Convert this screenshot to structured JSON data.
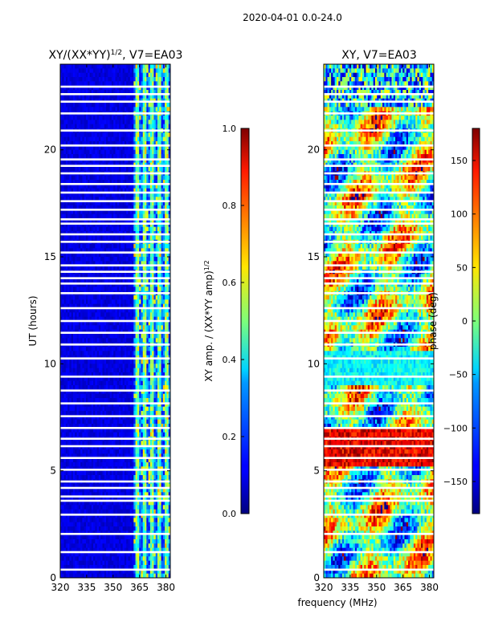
{
  "figure": {
    "suptitle": "2020-04-01 0.0-24.0",
    "xlabel": "frequency (MHz)"
  },
  "chart_data": [
    {
      "type": "heatmap",
      "title_main": "XY/(XX*YY)",
      "title_exp": "1/2",
      "title_suffix": ", V7=EA03",
      "xlabel": "",
      "ylabel": "UT (hours)",
      "xlim": [
        320,
        382.5
      ],
      "ylim": [
        0,
        24
      ],
      "xticks": [
        320,
        335,
        350,
        365,
        380
      ],
      "yticks": [
        0,
        5,
        10,
        15,
        20
      ],
      "colorbar": {
        "label_main": "XY amp. / (XX*YY amp)",
        "label_exp": "1/2",
        "range": [
          0.0,
          1.0
        ],
        "ticks": [
          "0.0",
          "0.2",
          "0.4",
          "0.6",
          "0.8",
          "1.0"
        ],
        "colormap": "jet"
      },
      "note": "Mostly low amplitude (~0.05-0.15); strong bright bands near 362-381 MHz"
    },
    {
      "type": "heatmap",
      "title": "XY, V7=EA03",
      "xlabel": "",
      "ylabel": "",
      "xlim": [
        320,
        382.5
      ],
      "ylim": [
        0,
        24
      ],
      "xticks": [
        320,
        335,
        350,
        365,
        380
      ],
      "yticks": [
        0,
        5,
        10,
        15,
        20
      ],
      "colorbar": {
        "label": "phase (deg)",
        "range": [
          -180,
          180
        ],
        "ticks": [
          "150",
          "100",
          "50",
          "0",
          "−50",
          "−100",
          "−150"
        ],
        "colormap": "jet"
      },
      "note": "Phase wraps across full range; noisy structure throughout"
    }
  ],
  "flagged_hours": [
    0.38,
    1.2,
    2.05,
    2.95,
    3.6,
    3.8,
    4.2,
    4.5,
    5.05,
    5.6,
    6.15,
    6.5,
    7.0,
    7.55,
    8.15,
    8.75,
    9.4,
    10.25,
    10.9,
    11.45,
    12.0,
    12.6,
    13.3,
    13.75,
    14.0,
    14.3,
    14.6,
    15.2,
    15.7,
    16.05,
    16.55,
    16.75,
    17.2,
    17.6,
    18.0,
    18.4,
    18.9,
    19.25,
    19.55,
    20.2,
    20.9,
    21.7,
    22.25,
    22.6,
    22.95
  ]
}
